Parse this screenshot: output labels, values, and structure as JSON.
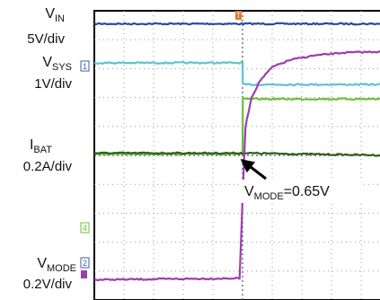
{
  "chart_data": {
    "type": "line",
    "title": "",
    "xlabel": "",
    "ylabel": "",
    "grid": true,
    "x": [
      0,
      2,
      4,
      6,
      8,
      10
    ],
    "x_range": [
      0,
      10
    ],
    "y_range": [
      0,
      10
    ],
    "trigger_x": 5,
    "channel_labels": [
      {
        "name": "V",
        "sub": "IN",
        "scale": "5V/div"
      },
      {
        "name": "V",
        "sub": "SYS",
        "scale": "1V/div"
      },
      {
        "name": "I",
        "sub": "BAT",
        "scale": "0.2A/div"
      },
      {
        "name": "V",
        "sub": "MODE",
        "scale": "0.2V/div"
      }
    ],
    "channel_markers": [
      "1",
      "4",
      "2"
    ],
    "series": [
      {
        "color": "#2b4c9c",
        "x": [
          0,
          10
        ],
        "y": [
          9.55,
          9.55
        ]
      },
      {
        "color": "#5bc3d6",
        "x": [
          0,
          5,
          5.01,
          10
        ],
        "y": [
          8.2,
          8.2,
          7.45,
          7.45
        ]
      },
      {
        "color": "#6abf3a",
        "x": [
          0,
          5,
          5.01,
          10
        ],
        "y": [
          5.05,
          5.05,
          6.95,
          6.95
        ]
      },
      {
        "color": "#2e5f1e",
        "x": [
          0,
          5,
          10
        ],
        "y": [
          5.08,
          5.08,
          5.0
        ]
      },
      {
        "color": "#9b3fae",
        "x": [
          0,
          4.9,
          5.0,
          5.1,
          5.3,
          5.6,
          6.0,
          6.6,
          7.4,
          8.4,
          10
        ],
        "y": [
          0.7,
          0.75,
          3.5,
          6.0,
          7.0,
          7.6,
          8.05,
          8.3,
          8.45,
          8.55,
          8.6
        ]
      }
    ],
    "annotation": {
      "name": "V",
      "sub": "MODE",
      "value": "=0.65V"
    }
  }
}
